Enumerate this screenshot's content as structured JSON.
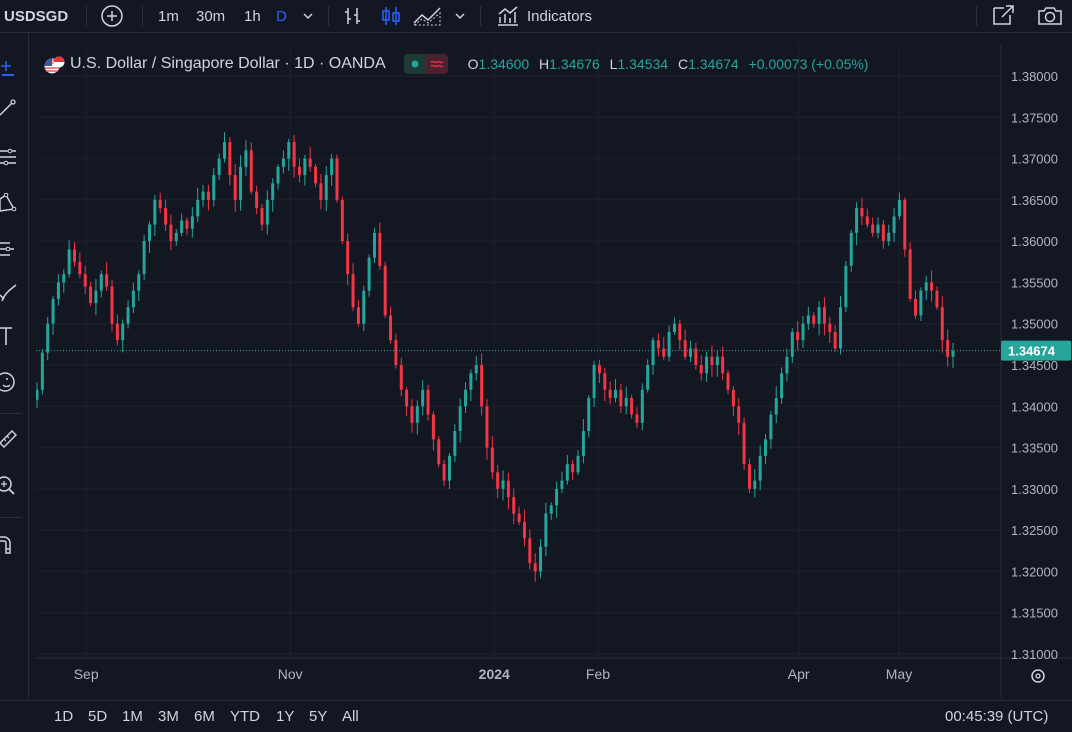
{
  "toolbar": {
    "symbol": "USDSGD",
    "intervals": [
      "1m",
      "30m",
      "1h",
      "D"
    ],
    "indicators_label": "Indicators"
  },
  "legend": {
    "title": "U.S. Dollar / Singapore Dollar · 1D · OANDA",
    "open_key": "O",
    "open": "1.34600",
    "high_key": "H",
    "high": "1.34676",
    "low_key": "L",
    "low": "1.34534",
    "close_key": "C",
    "close": "1.34674",
    "change": "+0.00073 (+0.05%)"
  },
  "colors": {
    "background": "#131722",
    "up": "#26a69a",
    "down": "#f23645",
    "grid": "#1e222d",
    "axis_text": "#b2b5be",
    "price_tag": "#26a69a"
  },
  "chart_data": {
    "type": "candlestick",
    "price_axis": {
      "ticks": [
        "1.38000",
        "1.37500",
        "1.37000",
        "1.36500",
        "1.36000",
        "1.35500",
        "1.35000",
        "1.34500",
        "1.34000",
        "1.33500",
        "1.33000",
        "1.32500",
        "1.32000",
        "1.31500",
        "1.31000"
      ],
      "range": [
        1.31,
        1.38
      ]
    },
    "time_axis": {
      "labels": [
        {
          "text": "Sep",
          "date": "2023-09-01",
          "bold": false
        },
        {
          "text": "Nov",
          "date": "2023-11-01",
          "bold": false
        },
        {
          "text": "2024",
          "date": "2024-01-01",
          "bold": true
        },
        {
          "text": "Feb",
          "date": "2024-02-01",
          "bold": false
        },
        {
          "text": "Apr",
          "date": "2024-04-01",
          "bold": false
        },
        {
          "text": "May",
          "date": "2024-05-01",
          "bold": false
        }
      ]
    },
    "last_price": "1.34674",
    "grid": true,
    "closes_daily": [
      1.342,
      1.3465,
      1.35,
      1.353,
      1.355,
      1.356,
      1.359,
      1.3575,
      1.356,
      1.3545,
      1.3525,
      1.354,
      1.356,
      1.3545,
      1.35,
      1.348,
      1.35,
      1.352,
      1.354,
      1.356,
      1.36,
      1.362,
      1.365,
      1.364,
      1.362,
      1.36,
      1.361,
      1.3625,
      1.3615,
      1.363,
      1.365,
      1.366,
      1.365,
      1.368,
      1.37,
      1.372,
      1.368,
      1.365,
      1.369,
      1.371,
      1.366,
      1.364,
      1.362,
      1.365,
      1.367,
      1.369,
      1.37,
      1.372,
      1.369,
      1.368,
      1.37,
      1.369,
      1.367,
      1.365,
      1.368,
      1.37,
      1.365,
      1.36,
      1.356,
      1.352,
      1.35,
      1.354,
      1.358,
      1.361,
      1.357,
      1.351,
      1.348,
      1.345,
      1.342,
      1.34,
      1.338,
      1.34,
      1.342,
      1.339,
      1.336,
      1.333,
      1.331,
      1.334,
      1.337,
      1.34,
      1.342,
      1.344,
      1.345,
      1.34,
      1.335,
      1.332,
      1.33,
      1.331,
      1.329,
      1.327,
      1.326,
      1.324,
      1.321,
      1.32,
      1.323,
      1.327,
      1.328,
      1.33,
      1.331,
      1.333,
      1.332,
      1.334,
      1.337,
      1.341,
      1.345,
      1.344,
      1.342,
      1.341,
      1.342,
      1.34,
      1.341,
      1.339,
      1.338,
      1.342,
      1.345,
      1.348,
      1.347,
      1.346,
      1.349,
      1.35,
      1.348,
      1.346,
      1.347,
      1.345,
      1.344,
      1.346,
      1.345,
      1.346,
      1.344,
      1.342,
      1.34,
      1.338,
      1.333,
      1.33,
      1.331,
      1.334,
      1.336,
      1.339,
      1.341,
      1.344,
      1.346,
      1.349,
      1.348,
      1.35,
      1.351,
      1.35,
      1.352,
      1.35,
      1.349,
      1.347,
      1.352,
      1.357,
      1.361,
      1.364,
      1.363,
      1.362,
      1.361,
      1.362,
      1.36,
      1.361,
      1.363,
      1.365,
      1.359,
      1.353,
      1.351,
      1.354,
      1.355,
      1.354,
      1.352,
      1.348,
      1.346,
      1.3467
    ]
  },
  "price_tag": "1.34674",
  "bottombar": {
    "ranges": [
      "1D",
      "5D",
      "1M",
      "3M",
      "6M",
      "YTD",
      "1Y",
      "5Y",
      "All"
    ],
    "clock": "00:45:39 (UTC)"
  }
}
